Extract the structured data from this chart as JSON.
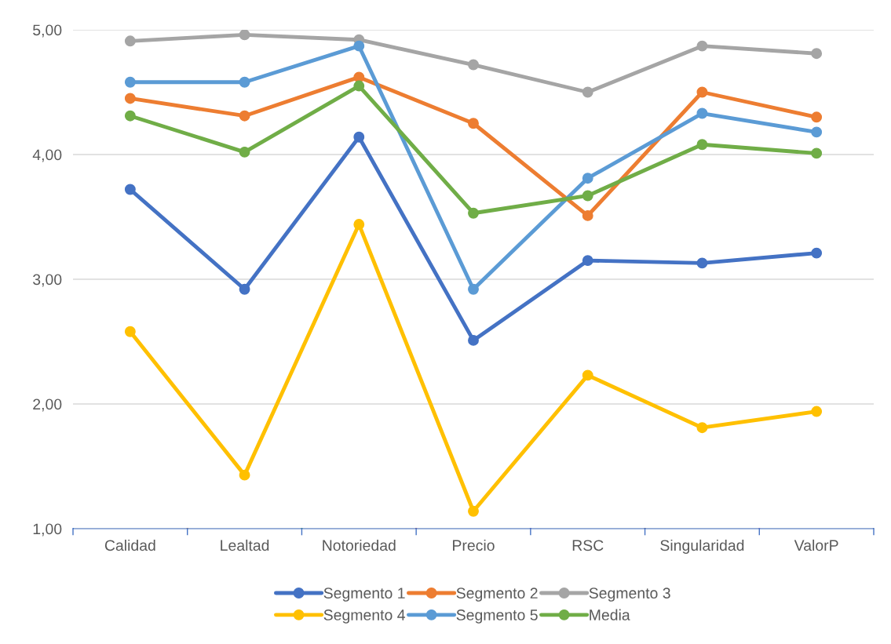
{
  "chart_data": {
    "type": "line",
    "categories": [
      "Calidad",
      "Lealtad",
      "Notoriedad",
      "Precio",
      "RSC",
      "Singularidad",
      "ValorP"
    ],
    "series": [
      {
        "name": "Segmento 1",
        "color": "#4472c4",
        "values": [
          3.72,
          2.92,
          4.14,
          2.51,
          3.15,
          3.13,
          3.21
        ]
      },
      {
        "name": "Segmento 2",
        "color": "#ed7d31",
        "values": [
          4.45,
          4.31,
          4.62,
          4.25,
          3.51,
          4.5,
          4.3
        ]
      },
      {
        "name": "Segmento 3",
        "color": "#a5a5a5",
        "values": [
          4.91,
          4.96,
          4.92,
          4.72,
          4.5,
          4.87,
          4.81
        ]
      },
      {
        "name": "Segmento 4",
        "color": "#ffc000",
        "values": [
          2.58,
          1.43,
          3.44,
          1.14,
          2.23,
          1.81,
          1.94
        ]
      },
      {
        "name": "Segmento 5",
        "color": "#5b9bd5",
        "values": [
          4.58,
          4.58,
          4.87,
          2.92,
          3.81,
          4.33,
          4.18
        ]
      },
      {
        "name": "Media",
        "color": "#70ad47",
        "values": [
          4.31,
          4.02,
          4.55,
          3.53,
          3.67,
          4.08,
          4.01
        ]
      }
    ],
    "ylim": [
      1,
      5
    ],
    "yticks": [
      {
        "value": 1,
        "label": "1,00"
      },
      {
        "value": 2,
        "label": "2,00"
      },
      {
        "value": 3,
        "label": "3,00"
      },
      {
        "value": 4,
        "label": "4,00"
      },
      {
        "value": 5,
        "label": "5,00"
      }
    ],
    "grid": "y",
    "legend": "bottom",
    "marker": "circle",
    "line_style": "solid"
  }
}
